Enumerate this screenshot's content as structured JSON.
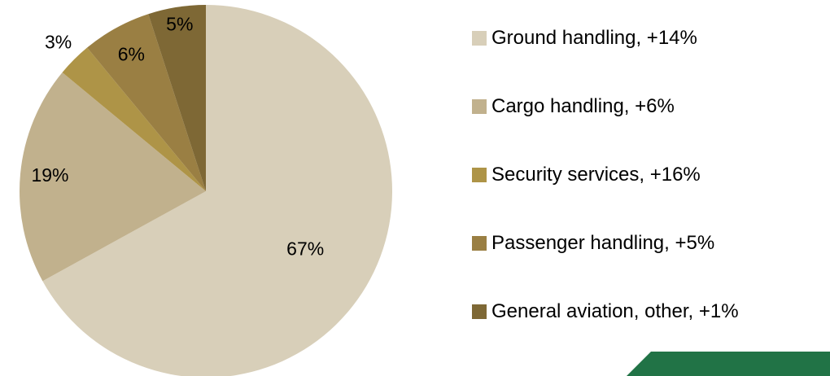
{
  "chart_data": {
    "type": "pie",
    "categories": [
      "Ground handling, +14%",
      "Cargo handling, +6%",
      "Security services, +16%",
      "Passenger handling, +5%",
      "General aviation, other, +1%"
    ],
    "values": [
      67,
      19,
      3,
      6,
      5
    ],
    "slice_labels": [
      "67%",
      "19%",
      "3%",
      "6%",
      "5%"
    ],
    "colors": [
      "#d8cfb9",
      "#c1b18d",
      "#ae9447",
      "#9a7f43",
      "#7e6835"
    ],
    "legend_position": "right",
    "start": "top, clockwise"
  },
  "accent_color": "#217346"
}
